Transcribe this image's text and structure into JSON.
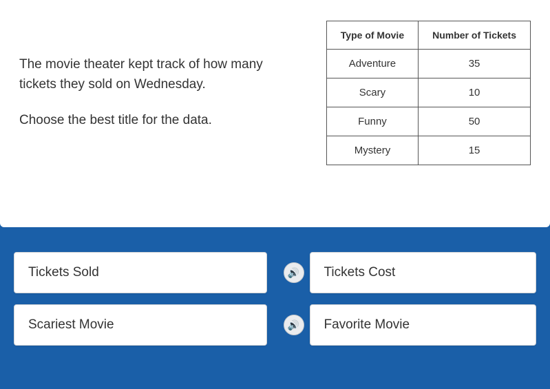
{
  "question": {
    "context": "The movie theater kept track of how many tickets they sold on Wednesday.",
    "prompt": "Choose the best title for the data."
  },
  "table": {
    "columns": [
      "Type of Movie",
      "Number of Tickets"
    ],
    "rows": [
      [
        "Adventure",
        "35"
      ],
      [
        "Scary",
        "10"
      ],
      [
        "Funny",
        "50"
      ],
      [
        "Mystery",
        "15"
      ]
    ],
    "border_color": "#555555",
    "header_fontsize": 14,
    "cell_fontsize": 15
  },
  "answers": [
    {
      "label": "Tickets Sold"
    },
    {
      "label": "Tickets Cost"
    },
    {
      "label": "Scariest Movie"
    },
    {
      "label": "Favorite Movie"
    }
  ],
  "colors": {
    "page_bg": "#1a5fa8",
    "card_bg": "#ffffff",
    "button_bg": "#ffffff",
    "text": "#333333"
  },
  "speaker_icon": "🔊"
}
